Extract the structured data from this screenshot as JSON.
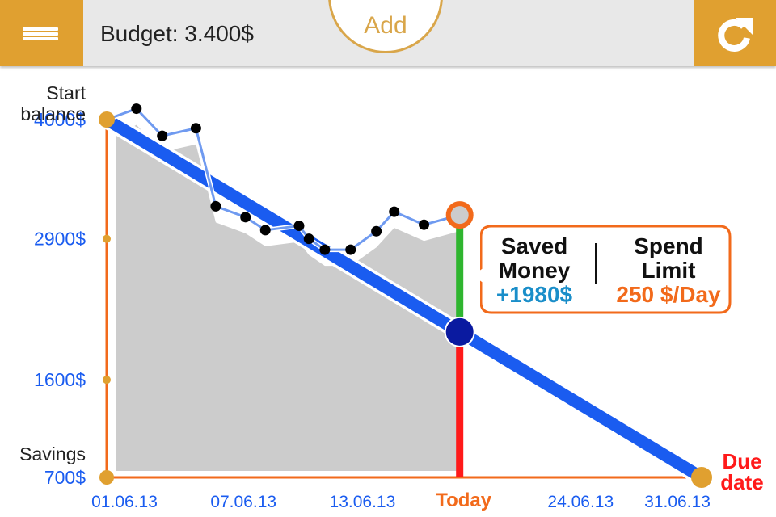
{
  "header": {
    "title": "Budget: 3.400$",
    "add_label": "Add",
    "menu_icon": "hamburger-menu-icon",
    "refresh_icon": "refresh-icon"
  },
  "colors": {
    "accent": "#e0a030",
    "plan_line": "#1a5cf0",
    "actual_line": "#6f9af0",
    "area": "#cccccc",
    "axis": "#f26a1b",
    "today_red": "#ff1a1a",
    "today_green": "#2fb52f",
    "today_marker": "#0a1aa0",
    "saved": "#1a8ec9",
    "limit": "#f26a1b"
  },
  "chart_data": {
    "type": "line",
    "y_axis": {
      "top_label_line1": "Start",
      "top_label_line2": "balance",
      "bottom_label": "Savings",
      "ticks": [
        {
          "value": 4000,
          "label": "4000$"
        },
        {
          "value": 2900,
          "label": "2900$"
        },
        {
          "value": 1600,
          "label": "1600$"
        },
        {
          "value": 700,
          "label": "700$"
        }
      ]
    },
    "x_axis": {
      "ticks": [
        {
          "day": 1,
          "label": "01.06.13"
        },
        {
          "day": 7,
          "label": "07.06.13"
        },
        {
          "day": 13,
          "label": "13.06.13"
        },
        {
          "day": 24,
          "label": "24.06.13"
        },
        {
          "day": 31,
          "label": "31.06.13"
        }
      ],
      "today_label": "Today",
      "due_label_line1": "Due",
      "due_label_line2": "date"
    },
    "ylim": [
      700,
      4000
    ],
    "xlim": [
      1,
      31
    ],
    "today_day": 18.8,
    "plan_start": {
      "day": 1,
      "value": 4000
    },
    "plan_end": {
      "day": 31,
      "value": 700
    },
    "actual": [
      {
        "day": 1,
        "value": 4000
      },
      {
        "day": 2.5,
        "value": 4100
      },
      {
        "day": 3.8,
        "value": 3850
      },
      {
        "day": 5.5,
        "value": 3920
      },
      {
        "day": 6.5,
        "value": 3200
      },
      {
        "day": 8,
        "value": 3100
      },
      {
        "day": 9,
        "value": 2980
      },
      {
        "day": 10.7,
        "value": 3020
      },
      {
        "day": 11.2,
        "value": 2900
      },
      {
        "day": 12,
        "value": 2800
      },
      {
        "day": 13.3,
        "value": 2800
      },
      {
        "day": 14.6,
        "value": 2970
      },
      {
        "day": 15.5,
        "value": 3150
      },
      {
        "day": 17,
        "value": 3030
      },
      {
        "day": 18.8,
        "value": 3120
      }
    ]
  },
  "callout": {
    "saved_line1": "Saved",
    "saved_line2": "Money",
    "saved_value": "+1980$",
    "limit_line1": "Spend",
    "limit_line2": "Limit",
    "limit_value": "250 $/Day"
  }
}
